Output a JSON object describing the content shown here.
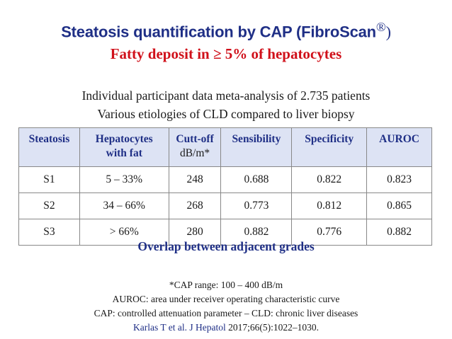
{
  "title": {
    "main": "Steatosis quantification by CAP (FibroScan",
    "reg": "®",
    "close": ")"
  },
  "subtitle": "Fatty deposit in ≥ 5% of hepatocytes",
  "intro": {
    "line1": "Individual participant data meta-analysis of 2.735 patients",
    "line2": "Various etiologies of CLD compared to liver biopsy"
  },
  "table": {
    "headers": {
      "steatosis": "Steatosis",
      "hepatocytes_line1": "Hepatocytes",
      "hepatocytes_line2": "with fat",
      "cutoff_line1": "Cutt-off",
      "cutoff_unit": "dB/m*",
      "sensibility": "Sensibility",
      "specificity": "Specificity",
      "auroc": "AUROC"
    },
    "rows": [
      {
        "grade": "S1",
        "hepatocytes": "5 – 33%",
        "cutoff": "248",
        "sensibility": "0.688",
        "specificity": "0.822",
        "auroc": "0.823"
      },
      {
        "grade": "S2",
        "hepatocytes": "34 – 66%",
        "cutoff": "268",
        "sensibility": "0.773",
        "specificity": "0.812",
        "auroc": "0.865"
      },
      {
        "grade": "S3",
        "hepatocytes": "> 66%",
        "cutoff": "280",
        "sensibility": "0.882",
        "specificity": "0.776",
        "auroc": "0.882"
      }
    ]
  },
  "overlap": "Overlap between adjacent grades",
  "notes": {
    "range": "*CAP range: 100 – 400 dB/m",
    "auroc_def": "AUROC: area under receiver operating characteristic curve",
    "cap_def": "CAP: controlled attenuation parameter – CLD: chronic liver diseases",
    "reference_authors": "Karlas T et al. J Hepatol",
    "reference_details": " 2017;66(5):1022–1030."
  },
  "colors": {
    "title": "#1f2f86",
    "subtitle": "#d0101a",
    "header_bg": "#dde3f4",
    "header_text": "#1f2f86"
  }
}
